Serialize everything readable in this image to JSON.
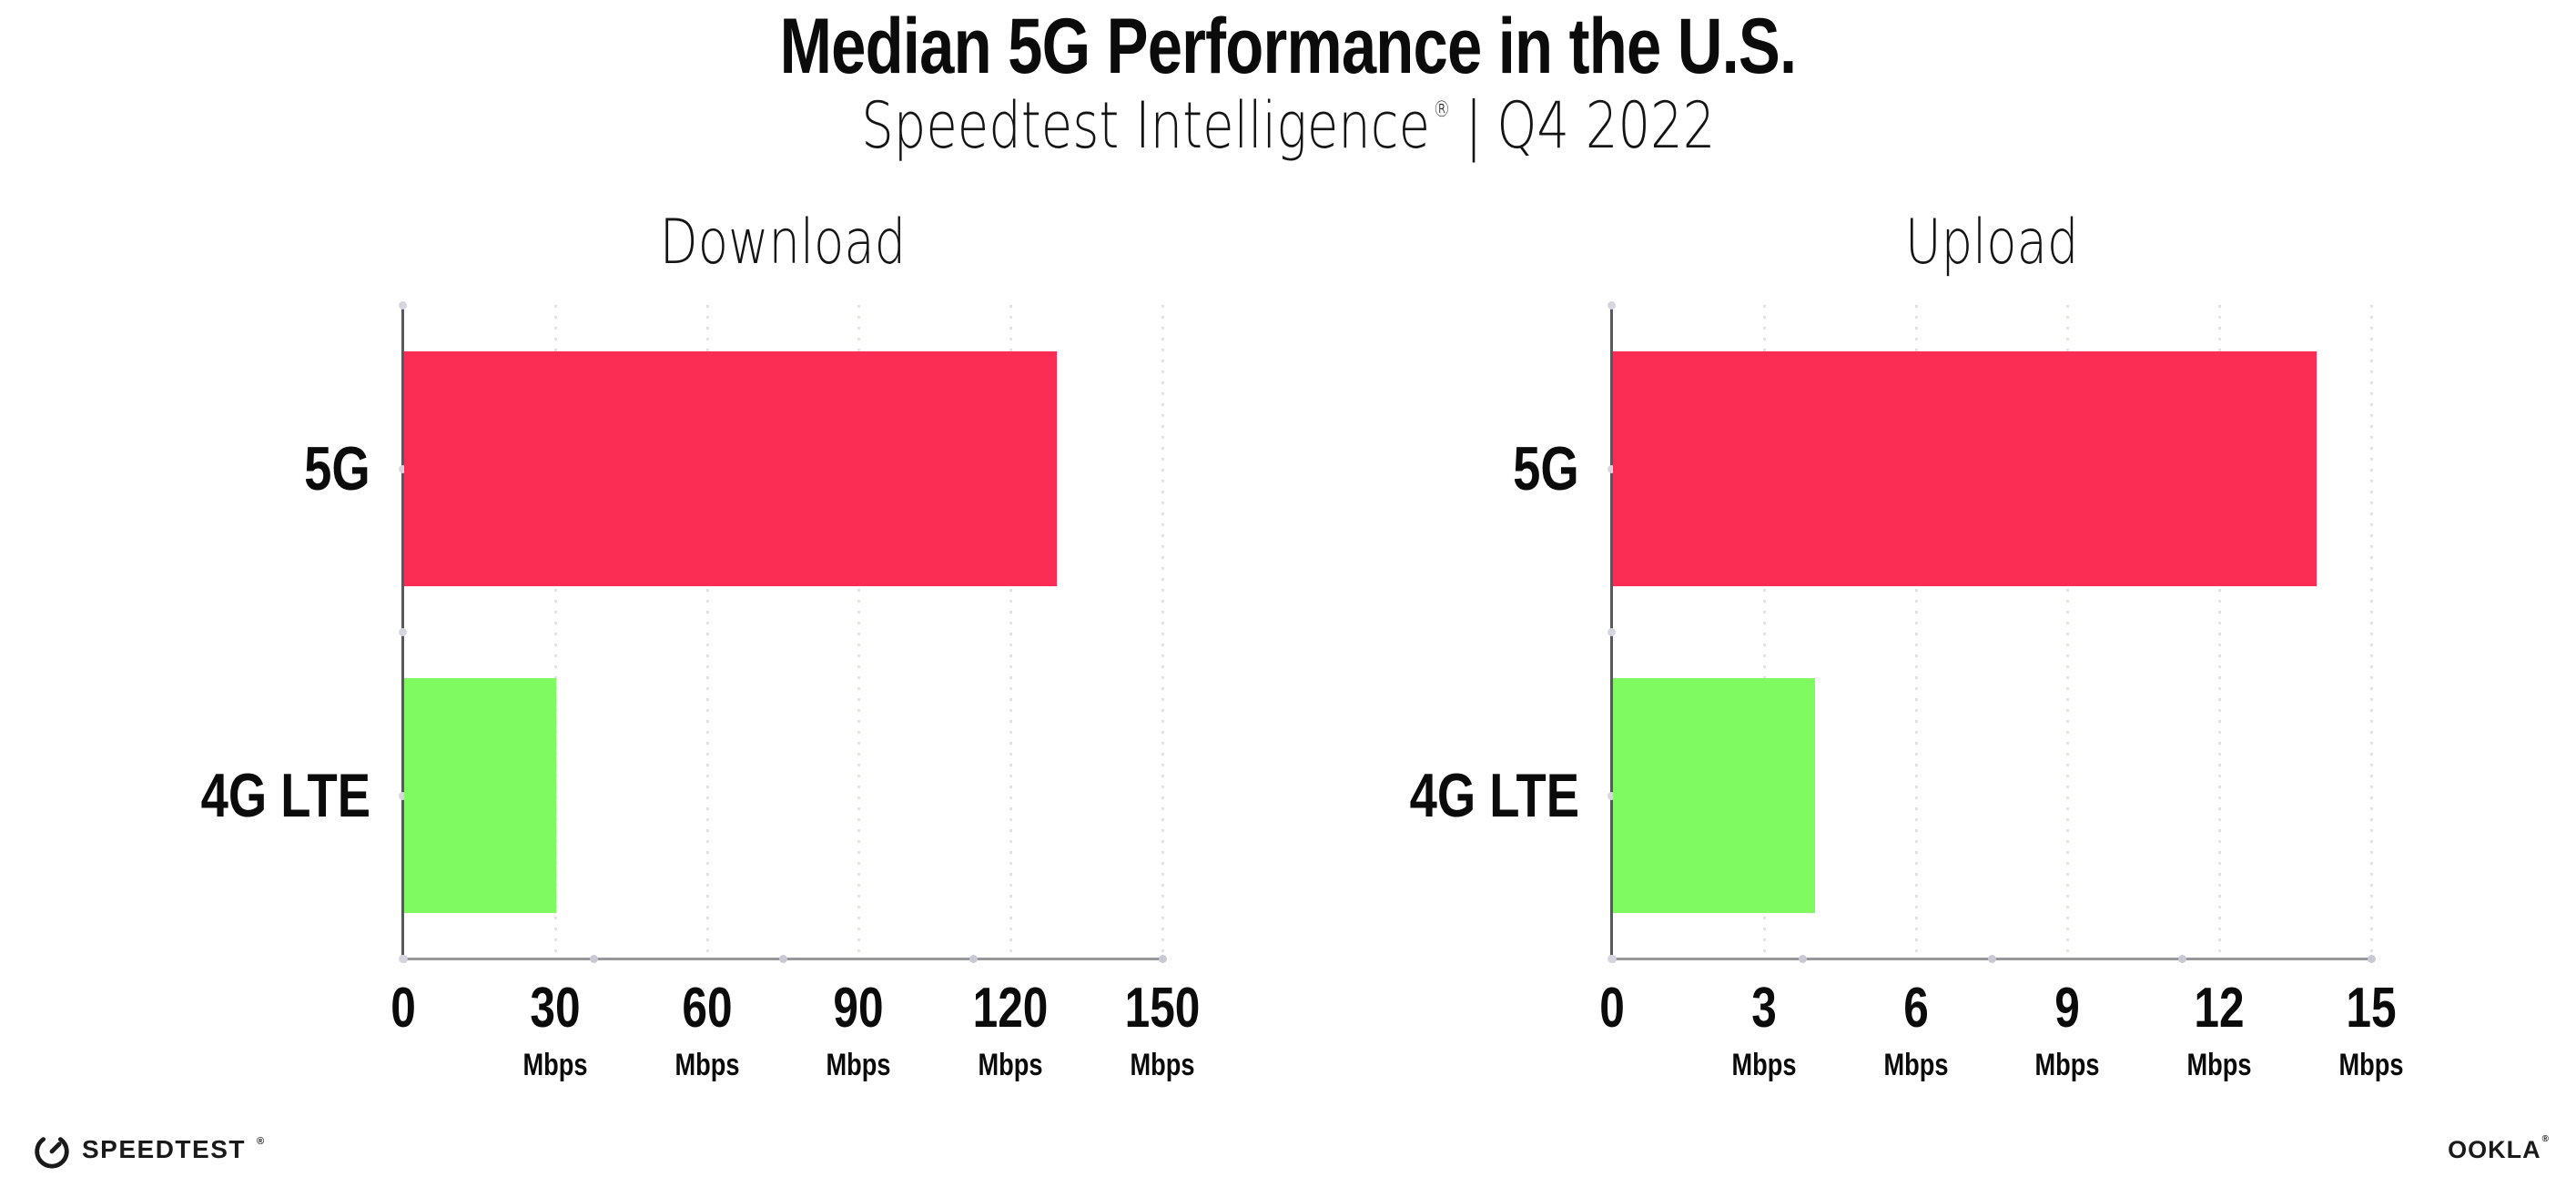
{
  "header": {
    "title": "Median 5G Performance in the U.S.",
    "subtitle_brand": "Speedtest Intelligence",
    "subtitle_reg": "®",
    "subtitle_divider": "|",
    "subtitle_period": "Q4 2022"
  },
  "chart_data": [
    {
      "type": "bar",
      "orientation": "horizontal",
      "title": "Download",
      "categories": [
        "5G",
        "4G LTE"
      ],
      "values": [
        129,
        30
      ],
      "unit": "Mbps",
      "xlim": [
        0,
        150
      ],
      "ticks": [
        0,
        30,
        60,
        90,
        120,
        150
      ],
      "bar_colors": [
        "#FC2D55",
        "#7FFB61"
      ],
      "grid": "dotted-vertical",
      "legend_position": "none"
    },
    {
      "type": "bar",
      "orientation": "horizontal",
      "title": "Upload",
      "categories": [
        "5G",
        "4G LTE"
      ],
      "values": [
        13.9,
        4
      ],
      "unit": "Mbps",
      "xlim": [
        0,
        15
      ],
      "ticks": [
        0,
        3,
        6,
        9,
        12,
        15
      ],
      "bar_colors": [
        "#FC2D55",
        "#7FFB61"
      ],
      "grid": "dotted-vertical",
      "legend_position": "none"
    }
  ],
  "footer": {
    "speedtest_text": "SPEEDTEST",
    "speedtest_mark": "®",
    "ookla_text": "OOKLA",
    "ookla_mark": "®"
  },
  "colors": {
    "bar_5g": "#FC2D55",
    "bar_4g_lte": "#7FFB61",
    "axis_y": "#585860",
    "axis_x": "#97979C",
    "gridline": "#E3E3ED",
    "text": "#0B0B0B",
    "background": "#FFFFFF"
  }
}
